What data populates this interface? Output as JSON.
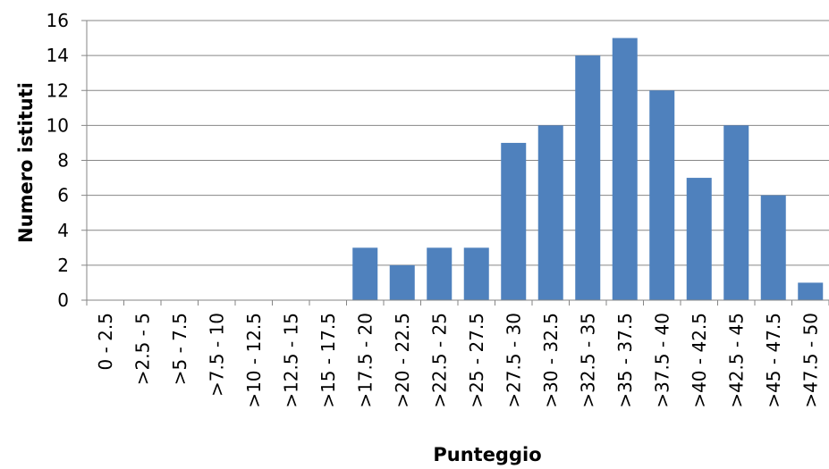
{
  "chart_data": {
    "type": "bar",
    "title": "",
    "xlabel": "Punteggio",
    "ylabel": "Numero istituti",
    "categories": [
      "0 - 2.5",
      ">2.5 - 5",
      ">5 - 7.5",
      ">7.5 - 10",
      ">10 - 12.5",
      ">12.5 - 15",
      ">15 - 17.5",
      ">17.5 - 20",
      ">20 - 22.5",
      ">22.5 - 25",
      ">25 - 27.5",
      ">27.5 - 30",
      ">30 - 32.5",
      ">32.5 - 35",
      ">35 - 37.5",
      ">37.5 - 40",
      ">40 - 42.5",
      ">42.5 - 45",
      ">45 - 47.5",
      ">47.5 - 50"
    ],
    "values": [
      0,
      0,
      0,
      0,
      0,
      0,
      0,
      3,
      2,
      3,
      3,
      9,
      10,
      14,
      15,
      12,
      7,
      10,
      6,
      1
    ],
    "ylim": [
      0,
      16
    ],
    "yticks": [
      0,
      2,
      4,
      6,
      8,
      10,
      12,
      14,
      16
    ],
    "grid": true,
    "legend": "none",
    "bar_color": "#4F81BD",
    "grid_color": "#868686",
    "axis_color": "#868686"
  }
}
